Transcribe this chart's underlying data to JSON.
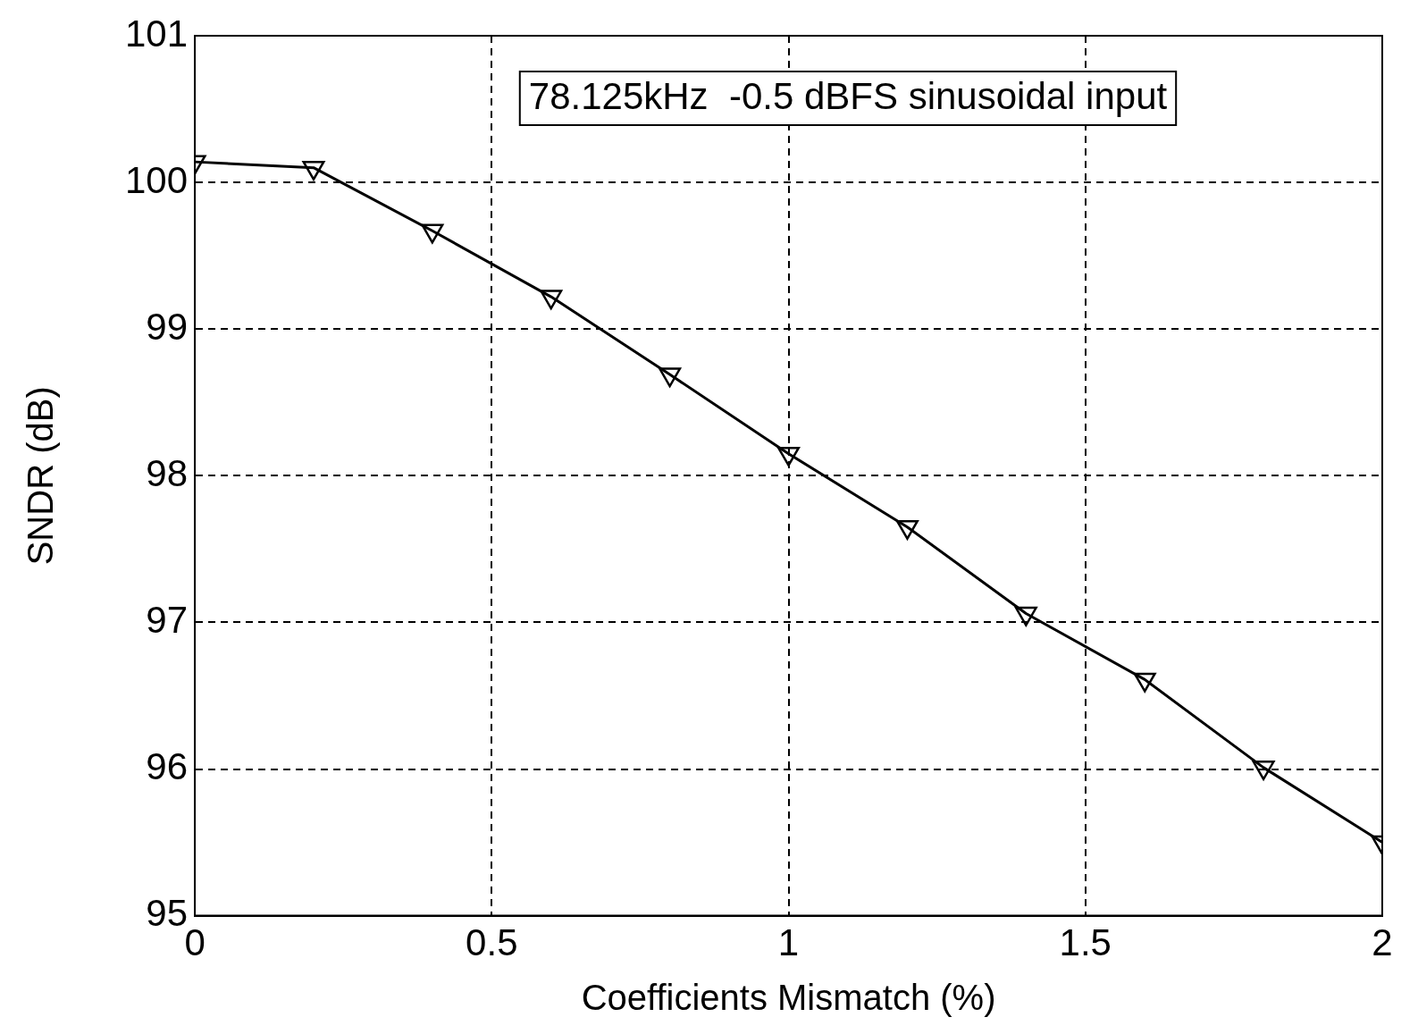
{
  "chart_data": {
    "type": "line",
    "xlabel": "Coefficients Mismatch (%)",
    "ylabel": "SNDR (dB)",
    "x": [
      0,
      0.2,
      0.4,
      0.6,
      0.8,
      1.0,
      1.2,
      1.4,
      1.6,
      1.8,
      2.0
    ],
    "series": [
      {
        "color": "#000000",
        "values": [
          100.14,
          100.1,
          99.67,
          99.22,
          98.69,
          98.15,
          97.65,
          97.06,
          96.61,
          96.01,
          95.5
        ]
      }
    ],
    "xlim": [
      0,
      2
    ],
    "xticks": [
      0,
      0.5,
      1,
      1.5,
      2
    ],
    "ylim": [
      95,
      101
    ],
    "yticks": [
      95,
      96,
      97,
      98,
      99,
      100,
      101
    ],
    "grid": true,
    "legend": false,
    "marker": "triangle",
    "line_style": "solid",
    "annotations": [
      "78.125kHz  -0.5 dBFS sinusoidal input"
    ]
  }
}
